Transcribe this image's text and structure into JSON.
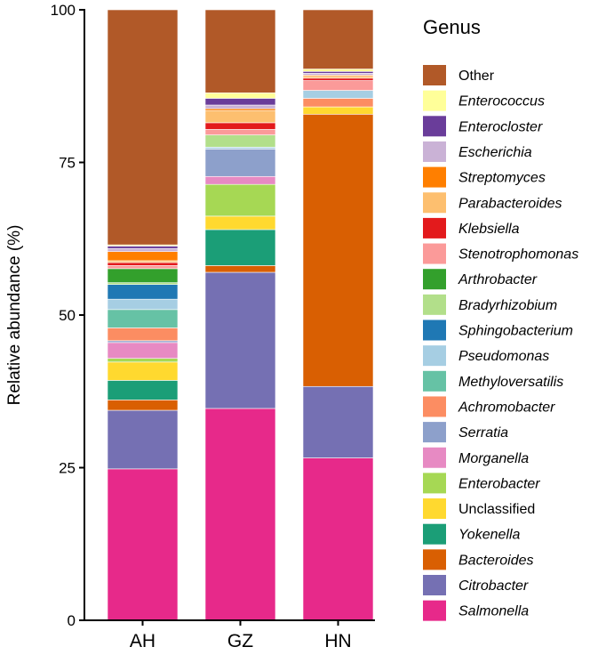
{
  "chart_data": {
    "type": "bar",
    "stacked": true,
    "title": "",
    "xlabel": "",
    "ylabel": "Relative abundance (%)",
    "ylim": [
      0,
      100
    ],
    "yticks": [
      0,
      25,
      50,
      75,
      100
    ],
    "categories": [
      "AH",
      "GZ",
      "HN"
    ],
    "legend_title": "Genus",
    "legend_position": "right",
    "series": [
      {
        "name": "Salmonella",
        "italic": true,
        "color": "#E7298A",
        "values": [
          24.8,
          34.7,
          26.6
        ]
      },
      {
        "name": "Citrobacter",
        "italic": true,
        "color": "#7570B3",
        "values": [
          9.6,
          22.3,
          11.7
        ]
      },
      {
        "name": "Bacteroides",
        "italic": true,
        "color": "#D95F02",
        "values": [
          1.7,
          1.1,
          44.6
        ]
      },
      {
        "name": "Yokenella",
        "italic": true,
        "color": "#1B9E77",
        "values": [
          3.2,
          5.9,
          0.0
        ]
      },
      {
        "name": "Unclassified",
        "italic": false,
        "color": "#FFD92F",
        "values": [
          3.0,
          2.2,
          1.2
        ]
      },
      {
        "name": "Enterobacter",
        "italic": true,
        "color": "#A6D854",
        "values": [
          0.6,
          5.2,
          0.0
        ]
      },
      {
        "name": "Morganella",
        "italic": true,
        "color": "#E78AC3",
        "values": [
          2.6,
          1.3,
          0.0
        ]
      },
      {
        "name": "Serratia",
        "italic": true,
        "color": "#8DA0CB",
        "values": [
          0.3,
          4.5,
          0.0
        ]
      },
      {
        "name": "Achromobacter",
        "italic": true,
        "color": "#FC8D62",
        "values": [
          2.1,
          0.0,
          1.4
        ]
      },
      {
        "name": "Methyloversatilis",
        "italic": true,
        "color": "#66C2A5",
        "values": [
          3.0,
          0.0,
          0.0
        ]
      },
      {
        "name": "Pseudomonas",
        "italic": true,
        "color": "#A6CEE3",
        "values": [
          1.7,
          0.3,
          1.3
        ]
      },
      {
        "name": "Sphingobacterium",
        "italic": true,
        "color": "#1F78B4",
        "values": [
          2.4,
          0.0,
          0.0
        ]
      },
      {
        "name": "Bradyrhizobium",
        "italic": true,
        "color": "#B2DF8A",
        "values": [
          0.3,
          2.0,
          0.0
        ]
      },
      {
        "name": "Arthrobacter",
        "italic": true,
        "color": "#33A02C",
        "values": [
          2.3,
          0.0,
          0.0
        ]
      },
      {
        "name": "Stenotrophomonas",
        "italic": true,
        "color": "#FB9A99",
        "values": [
          0.5,
          0.9,
          1.6
        ]
      },
      {
        "name": "Klebsiella",
        "italic": true,
        "color": "#E31A1C",
        "values": [
          0.5,
          1.1,
          0.4
        ]
      },
      {
        "name": "Parabacteroides",
        "italic": true,
        "color": "#FDBF6F",
        "values": [
          0.3,
          2.0,
          0.3
        ]
      },
      {
        "name": "Streptomyces",
        "italic": true,
        "color": "#FF7F00",
        "values": [
          1.5,
          0.3,
          0.2
        ]
      },
      {
        "name": "Escherichia",
        "italic": true,
        "color": "#CAB2D6",
        "values": [
          0.5,
          0.6,
          0.3
        ]
      },
      {
        "name": "Enterocloster",
        "italic": true,
        "color": "#6A3D9A",
        "values": [
          0.4,
          1.1,
          0.3
        ]
      },
      {
        "name": "Enterococcus",
        "italic": true,
        "color": "#FFFF99",
        "values": [
          0.2,
          0.9,
          0.4
        ]
      },
      {
        "name": "Other",
        "italic": false,
        "color": "#B15928",
        "values": [
          38.5,
          13.6,
          9.7
        ]
      }
    ]
  }
}
